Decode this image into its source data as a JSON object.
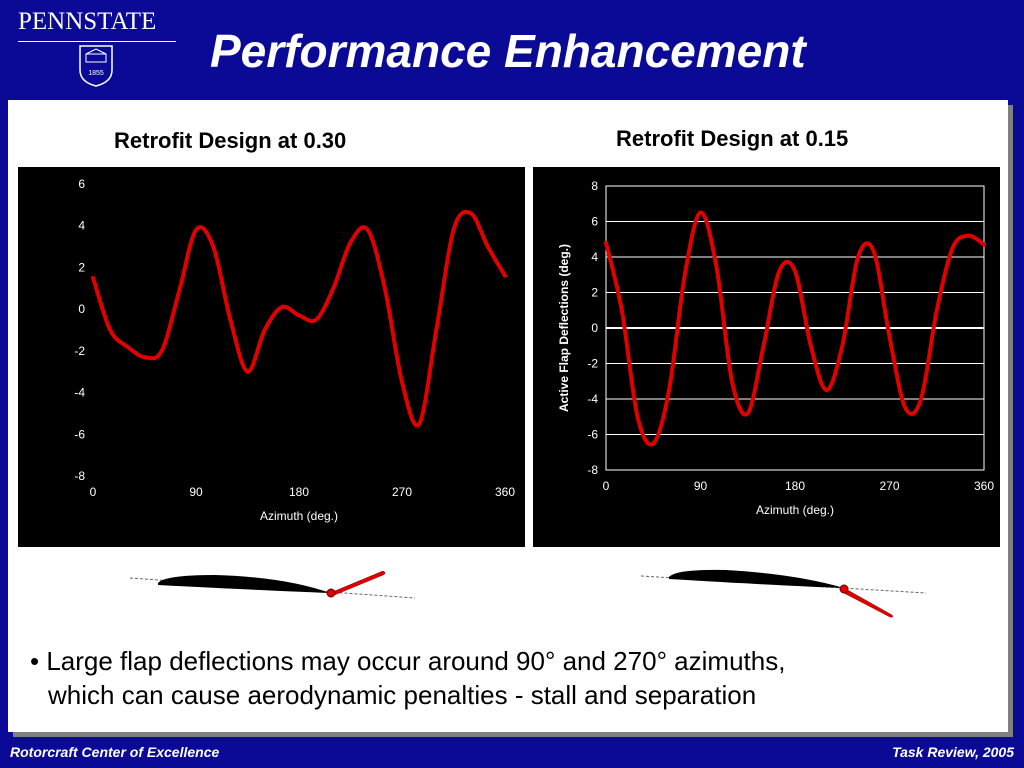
{
  "header": {
    "logo_text": "PENNSTATE",
    "seal_year": "1855",
    "title": "Performance Enhancement"
  },
  "charts": {
    "left_title": "Retrofit Design at 0.30",
    "right_title": "Retrofit Design at 0.15"
  },
  "chart_data": [
    {
      "type": "line",
      "title": "Retrofit Design at 0.30",
      "xlabel": "Azimuth (deg.)",
      "ylabel": "",
      "xlim": [
        0,
        360
      ],
      "ylim": [
        -8,
        6
      ],
      "xticks": [
        0,
        90,
        180,
        270,
        360
      ],
      "yticks": [
        6,
        4,
        2,
        0,
        -2,
        -4,
        -6,
        -8
      ],
      "grid": false,
      "series_color": "#e00000",
      "x": [
        0,
        15,
        30,
        45,
        60,
        75,
        90,
        105,
        120,
        135,
        150,
        165,
        180,
        195,
        210,
        225,
        240,
        255,
        270,
        285,
        300,
        315,
        330,
        345,
        360
      ],
      "y": [
        1.5,
        -1.0,
        -1.8,
        -2.3,
        -2.0,
        0.8,
        3.8,
        3.0,
        -0.5,
        -3.0,
        -1.0,
        0.1,
        -0.3,
        -0.5,
        1.0,
        3.2,
        3.8,
        1.0,
        -3.5,
        -5.5,
        -1.0,
        3.8,
        4.6,
        3.0,
        1.6
      ]
    },
    {
      "type": "line",
      "title": "Retrofit Design at 0.15",
      "xlabel": "Azimuth (deg.)",
      "ylabel": "Active Flap Deflections (deg.)",
      "xlim": [
        0,
        360
      ],
      "ylim": [
        -8,
        8
      ],
      "xticks": [
        0,
        90,
        180,
        270,
        360
      ],
      "yticks": [
        8,
        6,
        4,
        2,
        0,
        -2,
        -4,
        -6,
        -8
      ],
      "grid": true,
      "series_color": "#e00000",
      "x": [
        0,
        15,
        30,
        45,
        60,
        75,
        90,
        105,
        120,
        135,
        150,
        165,
        180,
        195,
        210,
        225,
        240,
        255,
        270,
        285,
        300,
        315,
        330,
        345,
        360
      ],
      "y": [
        4.8,
        1.0,
        -5.0,
        -6.5,
        -3.5,
        3.0,
        6.5,
        3.5,
        -3.0,
        -4.8,
        -1.0,
        3.2,
        3.2,
        -1.0,
        -3.5,
        -1.0,
        4.0,
        4.3,
        -0.5,
        -4.5,
        -4.0,
        1.0,
        4.5,
        5.2,
        4.7
      ]
    }
  ],
  "bullet": {
    "line1": "• Large flap deflections may occur around 90° and 270° azimuths,",
    "line2": "which can cause aerodynamic penalties - stall and separation"
  },
  "footer": {
    "left": "Rotorcraft Center of Excellence",
    "right": "Task Review, 2005"
  },
  "colors": {
    "background": "#0a0a96",
    "panel": "#ffffff",
    "curve": "#e00000",
    "text_light": "#ffffff"
  }
}
